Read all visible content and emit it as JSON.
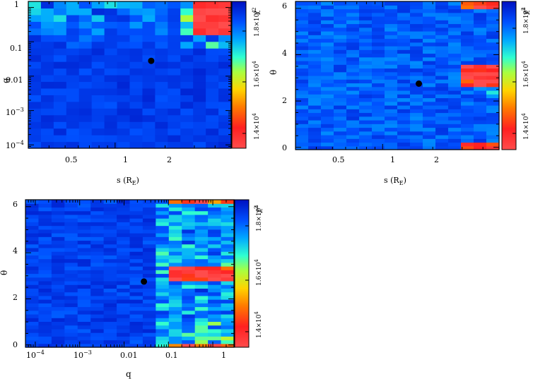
{
  "figure": {
    "panels": [
      {
        "id": "s-q",
        "xlabel": "s (R_E)",
        "ylabel": "q",
        "xticks": [
          "0.5",
          "1",
          "2"
        ],
        "yticks": [
          "1",
          "0.1",
          "0.01",
          "10^-3",
          "10^-4"
        ],
        "colorbar": {
          "label": "χ²",
          "ticks": [
            "1.8×10^4",
            "1.6×10^4",
            "1.4×10^4"
          ]
        },
        "best_fit_marker": {
          "x_value": 1.65,
          "y_value": 0.028
        }
      },
      {
        "id": "s-theta",
        "xlabel": "s (R_E)",
        "ylabel": "θ",
        "xticks": [
          "0.5",
          "1",
          "2"
        ],
        "yticks": [
          "6",
          "4",
          "2",
          "0"
        ],
        "colorbar": {
          "label": "χ²",
          "ticks": [
            "1.8×10^4",
            "1.6×10^4",
            "1.4×10^4"
          ]
        },
        "best_fit_marker": {
          "x_value": 1.65,
          "y_value": 2.75
        }
      },
      {
        "id": "q-theta",
        "xlabel": "q",
        "ylabel": "θ",
        "xticks": [
          "10^-4",
          "10^-3",
          "0.01",
          "0.1",
          "1"
        ],
        "yticks": [
          "6",
          "4",
          "2",
          "0"
        ],
        "colorbar": {
          "label": "χ²",
          "ticks": [
            "1.8×10^4",
            "1.6×10^4",
            "1.4×10^4"
          ]
        },
        "best_fit_marker": {
          "x_value": 0.028,
          "y_value": 2.75
        }
      }
    ]
  },
  "chart_data": [
    {
      "type": "heatmap",
      "title": "",
      "xlabel": "s (R_E)",
      "ylabel": "q",
      "x_scale": "log",
      "y_scale": "log",
      "xlim": [
        0.3,
        5.0
      ],
      "ylim": [
        8e-05,
        1.5
      ],
      "colorbar_label": "χ²",
      "colorbar_ticks": [
        14000,
        16000,
        18000
      ],
      "color_range": [
        13200,
        19500
      ],
      "grid": false,
      "description_of_values": "chi-squared surface; high (~1.9e4, blue) almost everywhere, lowest (red, ~1.35e4) at large s (~3-4.5) and q ~0.3-1",
      "best_fit": {
        "s": 1.65,
        "q": 0.028
      }
    },
    {
      "type": "heatmap",
      "title": "",
      "xlabel": "s (R_E)",
      "ylabel": "θ",
      "x_scale": "log",
      "y_scale": "linear",
      "xlim": [
        0.3,
        5.0
      ],
      "ylim": [
        -0.1,
        6.3
      ],
      "colorbar_label": "χ²",
      "colorbar_ticks": [
        14000,
        16000,
        18000
      ],
      "color_range": [
        13200,
        19500
      ],
      "grid": false,
      "description_of_values": "chi-squared surface; mostly blue, minima (red/yellow) at s ~3-4.5 near θ ~3 and near θ ~0 and ~6.2",
      "best_fit": {
        "s": 1.65,
        "theta": 2.75
      }
    },
    {
      "type": "heatmap",
      "title": "",
      "xlabel": "q",
      "ylabel": "θ",
      "x_scale": "log",
      "y_scale": "linear",
      "xlim": [
        6e-05,
        3.0
      ],
      "ylim": [
        -0.1,
        6.3
      ],
      "colorbar_label": "χ²",
      "colorbar_ticks": [
        14000,
        16000,
        18000
      ],
      "color_range": [
        13200,
        19500
      ],
      "grid": false,
      "description_of_values": "chi-squared surface; blue at small q, minima (red) at q ~0.1-1 near θ ~3, orange edge at θ ~0 and ~6.2",
      "best_fit": {
        "q": 0.028,
        "theta": 2.75
      }
    }
  ]
}
